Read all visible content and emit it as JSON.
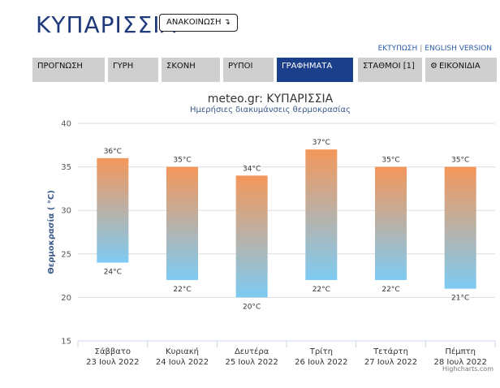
{
  "header": {
    "title": "ΚΥΠΑΡΙΣΣΙΑ",
    "announce_label": "ΑΝΑΚΟΙΝΩΣΗ ↴",
    "print_link": "ΕΚΤΥΠΩΣΗ",
    "english_link": "ENGLISH VERSION"
  },
  "tabs": [
    {
      "label": "ΠΡΟΓΝΩΣΗ",
      "active": false
    },
    {
      "label": "ΓΥΡΗ",
      "active": false
    },
    {
      "label": "ΣΚΟΝΗ",
      "active": false
    },
    {
      "label": "ΡΥΠΟΙ",
      "active": false
    },
    {
      "label": "ΓΡΑΦΗΜΑΤΑ",
      "active": true
    },
    {
      "label": "ΣΤΑΘΜΟΙ [1]",
      "active": false
    },
    {
      "label": "ΕΙΚΟΝΙΔΙΑ",
      "active": false,
      "icon": "gear-icon"
    }
  ],
  "chart_data": {
    "type": "bar",
    "title": "meteo.gr: ΚΥΠΑΡΙΣΣΙΑ",
    "subtitle": "Ημερήσιες διακυμάνσεις θερμοκρασίας",
    "ylabel": "Θερμοκρασία ( °C)",
    "ylim": [
      15,
      40
    ],
    "yticks": [
      15,
      20,
      25,
      30,
      35,
      40
    ],
    "grid": true,
    "categories": [
      {
        "day": "Σάββατο",
        "date": "23 Ιουλ 2022"
      },
      {
        "day": "Κυριακή",
        "date": "24 Ιουλ 2022"
      },
      {
        "day": "Δευτέρα",
        "date": "25 Ιουλ 2022"
      },
      {
        "day": "Τρίτη",
        "date": "26 Ιουλ 2022"
      },
      {
        "day": "Τετάρτη",
        "date": "27 Ιουλ 2022"
      },
      {
        "day": "Πέμπτη",
        "date": "28 Ιουλ 2022"
      }
    ],
    "low": [
      24,
      22,
      20,
      22,
      22,
      21
    ],
    "high": [
      36,
      35,
      34,
      37,
      35,
      35
    ],
    "unit": "°C",
    "colors": {
      "high": "#f4975a",
      "low": "#7ecbf3",
      "grid": "#dddddd",
      "title": "#333333",
      "subtitle": "#3a5a8c"
    }
  },
  "credit": "Highcharts.com"
}
